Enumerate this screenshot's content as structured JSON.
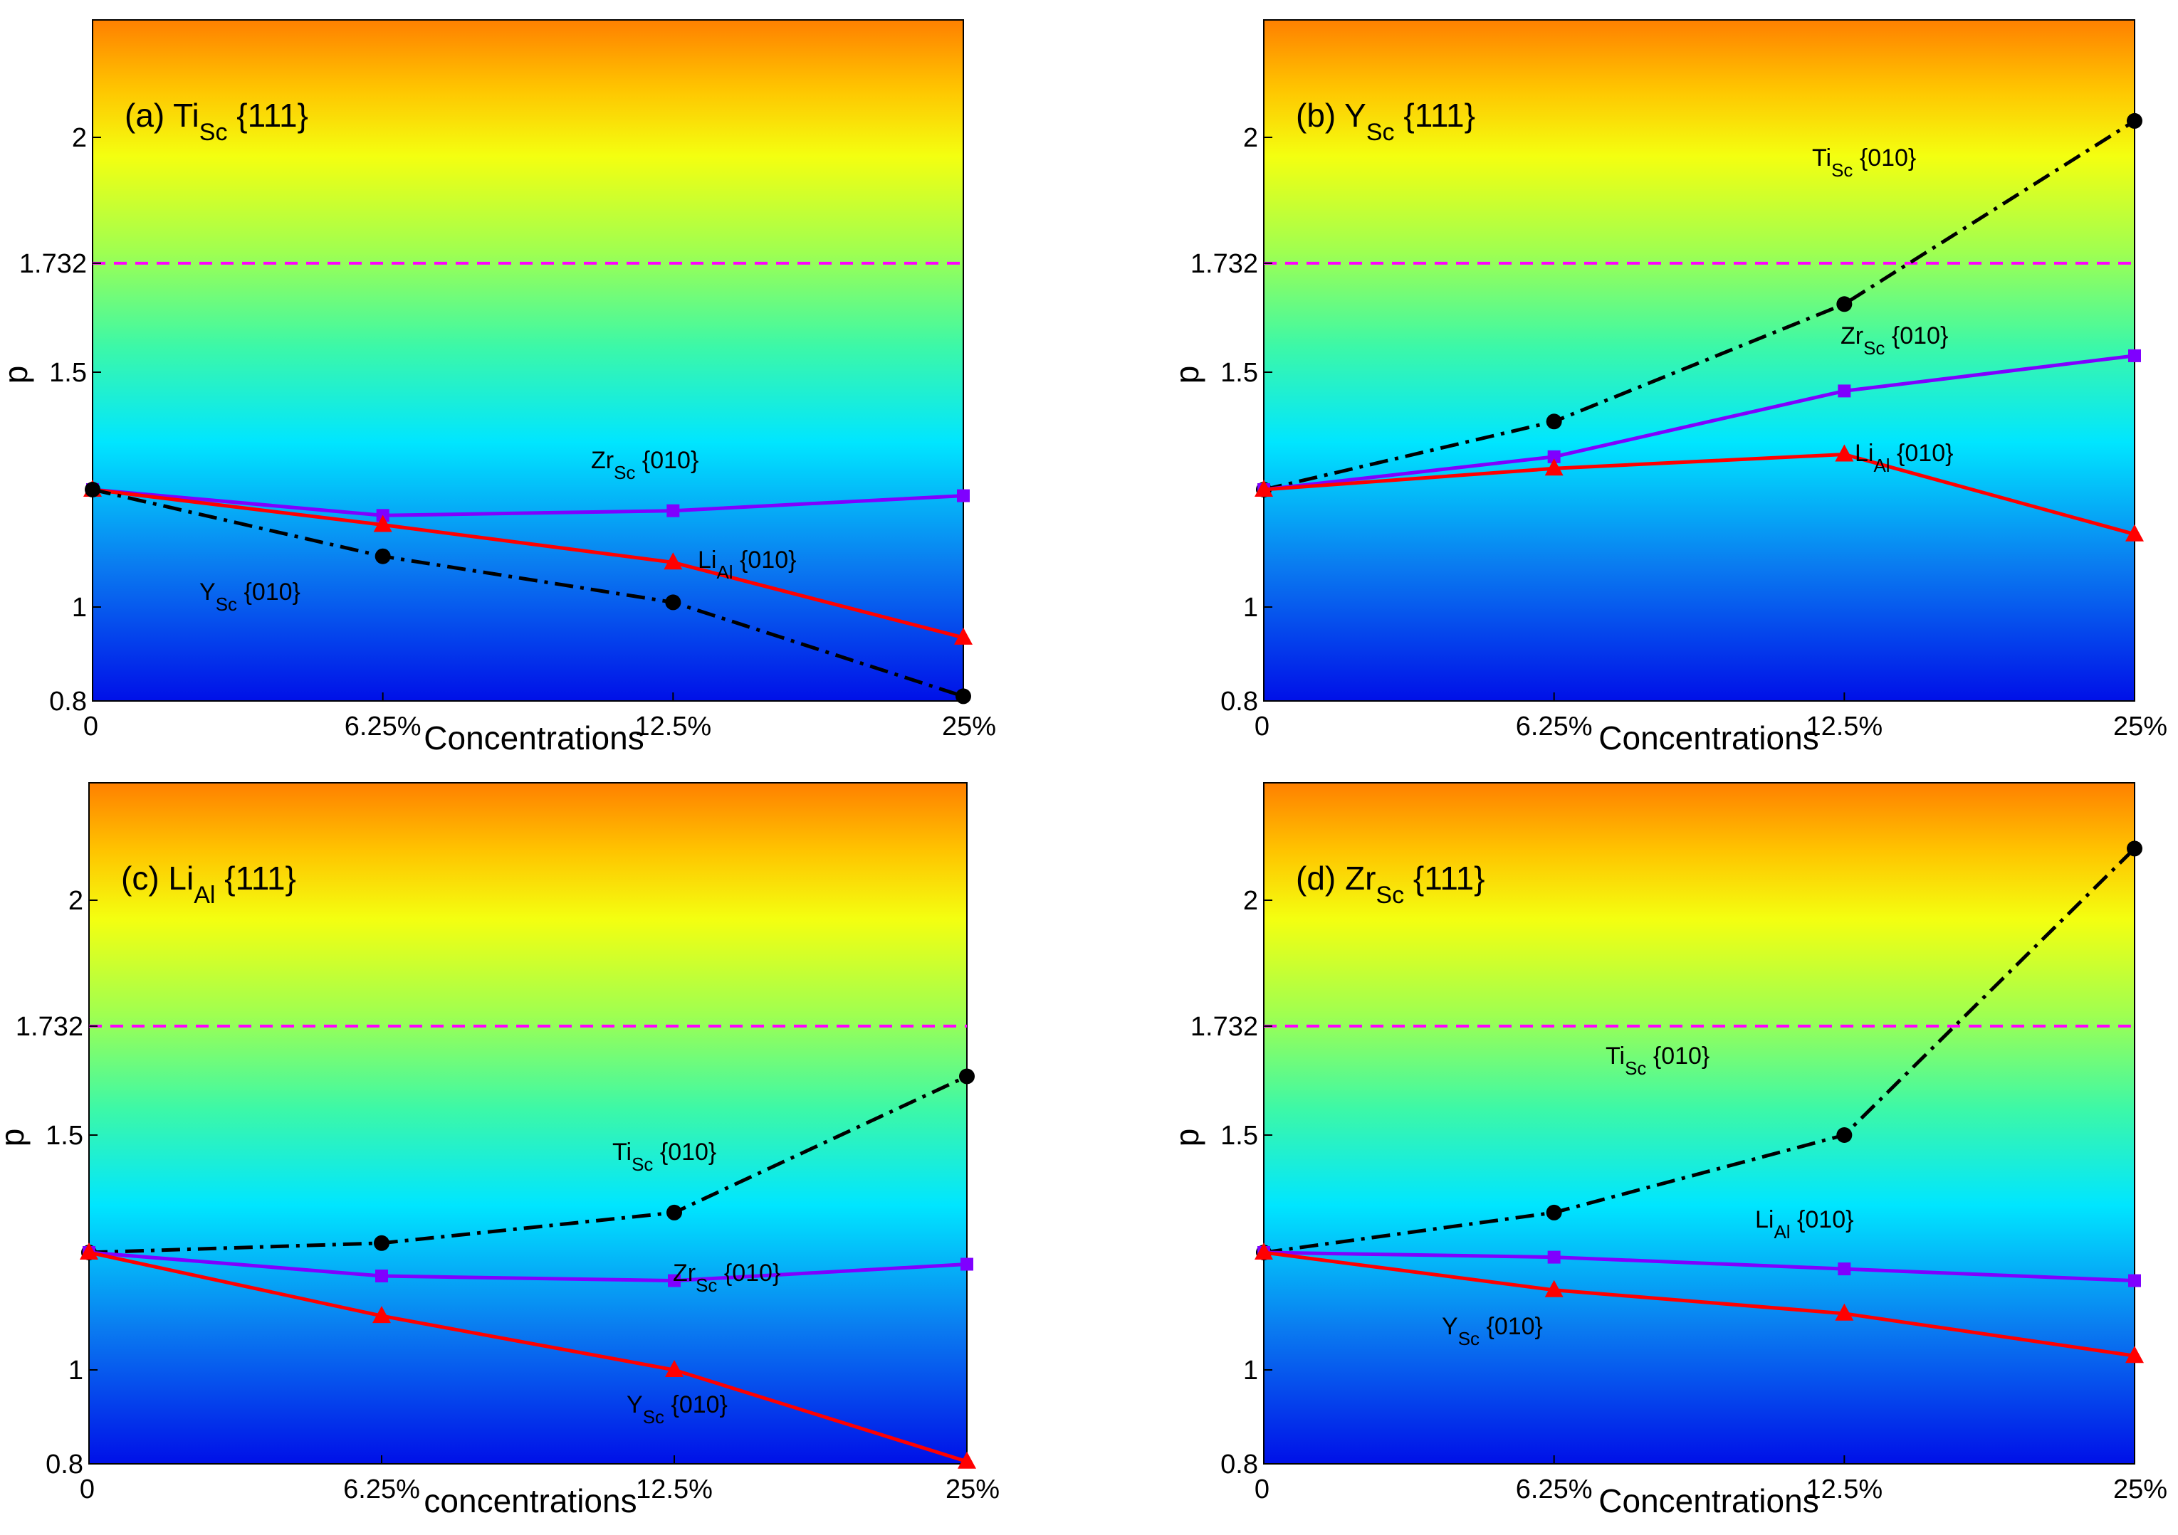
{
  "chart_data": [
    {
      "type": "line",
      "title": "(a) Ti",
      "title_sub": "Sc",
      "title_suffix": " {111}",
      "xlabel": "Concentrations",
      "ylabel": "p",
      "categories": [
        "0",
        "6.25%",
        "12.5%",
        "25%"
      ],
      "ylim": [
        0.8,
        2.25
      ],
      "yticks": [
        0.8,
        1,
        1.5,
        1.732,
        2
      ],
      "ytick_labels": [
        "0.8",
        "1",
        "1.5",
        "1.732",
        "2"
      ],
      "reference_line": {
        "value": 1.732,
        "color": "#ff00ff"
      },
      "series": [
        {
          "name": "ZrSc{010}",
          "label": "Zr",
          "sub": "Sc",
          "suffix": " {010}",
          "values": [
            1.25,
            1.195,
            1.205,
            1.237
          ],
          "color": "#7f00ff",
          "marker": "square",
          "style": "solid"
        },
        {
          "name": "LiAl{010}",
          "label": "Li",
          "sub": "Al",
          "suffix": " {010}",
          "values": [
            1.25,
            1.175,
            1.095,
            0.935
          ],
          "color": "#ff0000",
          "marker": "triangle",
          "style": "solid"
        },
        {
          "name": "YSc{010}",
          "label": "Y",
          "sub": "Sc",
          "suffix": " {010}",
          "values": [
            1.25,
            1.108,
            1.01,
            0.81
          ],
          "color": "#000000",
          "marker": "circle",
          "style": "dashdot"
        }
      ]
    },
    {
      "type": "line",
      "title": "(b) Y",
      "title_sub": "Sc",
      "title_suffix": " {111}",
      "xlabel": "Concentrations",
      "ylabel": "p",
      "categories": [
        "0",
        "6.25%",
        "12.5%",
        "25%"
      ],
      "ylim": [
        0.8,
        2.25
      ],
      "yticks": [
        0.8,
        1,
        1.5,
        1.732,
        2
      ],
      "ytick_labels": [
        "0.8",
        "1",
        "1.5",
        "1.732",
        "2"
      ],
      "reference_line": {
        "value": 1.732,
        "color": "#ff00ff"
      },
      "series": [
        {
          "name": "TiSc{010}",
          "label": "Ti",
          "sub": "Sc",
          "suffix": " {010}",
          "values": [
            1.25,
            1.395,
            1.645,
            2.035
          ],
          "color": "#000000",
          "marker": "circle",
          "style": "dashdot"
        },
        {
          "name": "ZrSc{010}",
          "label": "Zr",
          "sub": "Sc",
          "suffix": " {010}",
          "values": [
            1.25,
            1.32,
            1.46,
            1.535
          ],
          "color": "#7f00ff",
          "marker": "square",
          "style": "solid"
        },
        {
          "name": "LiAl{010}",
          "label": "Li",
          "sub": "Al",
          "suffix": " {010}",
          "values": [
            1.25,
            1.295,
            1.325,
            1.155
          ],
          "color": "#ff0000",
          "marker": "triangle",
          "style": "solid"
        }
      ]
    },
    {
      "type": "line",
      "title": "(c) Li",
      "title_sub": "Al",
      "title_suffix": " {111}",
      "xlabel": "concentrations",
      "ylabel": "p",
      "categories": [
        "0",
        "6.25%",
        "12.5%",
        "25%"
      ],
      "ylim": [
        0.8,
        2.25
      ],
      "yticks": [
        0.8,
        1,
        1.5,
        1.732,
        2
      ],
      "ytick_labels": [
        "0.8",
        "1",
        "1.5",
        "1.732",
        "2"
      ],
      "reference_line": {
        "value": 1.732,
        "color": "#ff00ff"
      },
      "series": [
        {
          "name": "TiSc{010}",
          "label": "Ti",
          "sub": "Sc",
          "suffix": " {010}",
          "values": [
            1.25,
            1.27,
            1.335,
            1.625
          ],
          "color": "#000000",
          "marker": "circle",
          "style": "dashdot"
        },
        {
          "name": "ZrSc{010}",
          "label": "Zr",
          "sub": "Sc",
          "suffix": " {010}",
          "values": [
            1.25,
            1.2,
            1.19,
            1.225
          ],
          "color": "#7f00ff",
          "marker": "square",
          "style": "solid"
        },
        {
          "name": "YSc{010}",
          "label": "Y",
          "sub": "Sc",
          "suffix": " {010}",
          "values": [
            1.25,
            1.115,
            1.0,
            0.805
          ],
          "color": "#ff0000",
          "marker": "triangle",
          "style": "solid"
        }
      ]
    },
    {
      "type": "line",
      "title": "(d) Zr",
      "title_sub": "Sc",
      "title_suffix": " {111}",
      "xlabel": "Concentrations",
      "ylabel": "p",
      "categories": [
        "0",
        "6.25%",
        "12.5%",
        "25%"
      ],
      "ylim": [
        0.8,
        2.25
      ],
      "yticks": [
        0.8,
        1,
        1.5,
        1.732,
        2
      ],
      "ytick_labels": [
        "0.8",
        "1",
        "1.5",
        "1.732",
        "2"
      ],
      "reference_line": {
        "value": 1.732,
        "color": "#ff00ff"
      },
      "series": [
        {
          "name": "TiSc{010}",
          "label": "Ti",
          "sub": "Sc",
          "suffix": " {010}",
          "values": [
            1.25,
            1.335,
            1.5,
            2.11
          ],
          "color": "#000000",
          "marker": "circle",
          "style": "dashdot"
        },
        {
          "name": "LiAl{010}",
          "label": "Li",
          "sub": "Al",
          "suffix": " {010}",
          "values": [
            1.25,
            1.24,
            1.215,
            1.19
          ],
          "color": "#7f00ff",
          "marker": "square",
          "style": "solid"
        },
        {
          "name": "YSc{010}",
          "label": "Y",
          "sub": "Sc",
          "suffix": " {010}",
          "values": [
            1.25,
            1.17,
            1.12,
            1.03
          ],
          "color": "#ff0000",
          "marker": "triangle",
          "style": "solid"
        }
      ]
    }
  ]
}
